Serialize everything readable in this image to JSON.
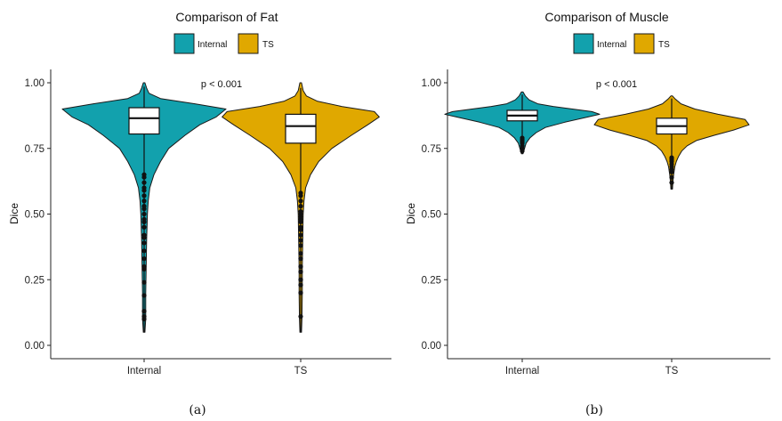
{
  "colors": {
    "internal": "#12a1ad",
    "ts": "#e0a800",
    "outline": "#1a1a1a"
  },
  "chart_data": [
    {
      "type": "violin",
      "title": "Comparison of Fat",
      "xlabel": "",
      "ylabel": "Dice",
      "ylim": [
        0,
        1.05
      ],
      "yticks": [
        "0.00",
        "0.25",
        "0.50",
        "0.75",
        "1.00"
      ],
      "categories": [
        "Internal",
        "TS"
      ],
      "legend": {
        "placement": "top-center",
        "entries": [
          "Internal",
          "TS"
        ]
      },
      "annotation": "p < 0.001",
      "caption": "(a)",
      "series": [
        {
          "name": "Internal",
          "min": 0.05,
          "max": 1.0,
          "box": {
            "q1": 0.805,
            "median": 0.865,
            "q3": 0.905,
            "whisker_low": 0.66,
            "whisker_high": 0.985
          },
          "density": [
            [
              0.05,
              0.01
            ],
            [
              0.1,
              0.02
            ],
            [
              0.2,
              0.02
            ],
            [
              0.3,
              0.025
            ],
            [
              0.4,
              0.03
            ],
            [
              0.5,
              0.04
            ],
            [
              0.55,
              0.05
            ],
            [
              0.6,
              0.07
            ],
            [
              0.65,
              0.12
            ],
            [
              0.7,
              0.2
            ],
            [
              0.75,
              0.3
            ],
            [
              0.8,
              0.5
            ],
            [
              0.84,
              0.68
            ],
            [
              0.87,
              0.88
            ],
            [
              0.9,
              1.0
            ],
            [
              0.92,
              0.62
            ],
            [
              0.94,
              0.2
            ],
            [
              0.96,
              0.06
            ],
            [
              0.98,
              0.03
            ],
            [
              1.0,
              0.01
            ]
          ],
          "outliers": [
            0.1,
            0.11,
            0.13,
            0.19,
            0.24,
            0.29,
            0.3,
            0.33,
            0.36,
            0.39,
            0.41,
            0.42,
            0.45,
            0.47,
            0.48,
            0.5,
            0.52,
            0.53,
            0.55,
            0.57,
            0.59,
            0.6,
            0.62,
            0.64,
            0.65
          ]
        },
        {
          "name": "TS",
          "min": 0.05,
          "max": 1.0,
          "box": {
            "q1": 0.77,
            "median": 0.835,
            "q3": 0.88,
            "whisker_low": 0.59,
            "whisker_high": 0.98
          },
          "density": [
            [
              0.05,
              0.01
            ],
            [
              0.1,
              0.015
            ],
            [
              0.2,
              0.02
            ],
            [
              0.3,
              0.02
            ],
            [
              0.4,
              0.025
            ],
            [
              0.5,
              0.03
            ],
            [
              0.55,
              0.04
            ],
            [
              0.6,
              0.06
            ],
            [
              0.65,
              0.12
            ],
            [
              0.7,
              0.22
            ],
            [
              0.75,
              0.38
            ],
            [
              0.8,
              0.62
            ],
            [
              0.84,
              0.82
            ],
            [
              0.87,
              0.96
            ],
            [
              0.89,
              0.9
            ],
            [
              0.91,
              0.5
            ],
            [
              0.93,
              0.2
            ],
            [
              0.95,
              0.07
            ],
            [
              0.97,
              0.03
            ],
            [
              1.0,
              0.01
            ]
          ],
          "outliers": [
            0.11,
            0.2,
            0.23,
            0.25,
            0.28,
            0.3,
            0.33,
            0.35,
            0.38,
            0.4,
            0.42,
            0.44,
            0.45,
            0.47,
            0.48,
            0.49,
            0.5,
            0.51,
            0.53,
            0.55,
            0.57,
            0.58
          ]
        }
      ]
    },
    {
      "type": "violin",
      "title": "Comparison of Muscle",
      "xlabel": "",
      "ylabel": "Dice",
      "ylim": [
        0,
        1.05
      ],
      "yticks": [
        "0.00",
        "0.25",
        "0.50",
        "0.75",
        "1.00"
      ],
      "categories": [
        "Internal",
        "TS"
      ],
      "legend": {
        "placement": "top-center",
        "entries": [
          "Internal",
          "TS"
        ]
      },
      "annotation": "p < 0.001",
      "caption": "(b)",
      "series": [
        {
          "name": "Internal",
          "min": 0.73,
          "max": 0.965,
          "box": {
            "q1": 0.855,
            "median": 0.875,
            "q3": 0.895,
            "whisker_low": 0.795,
            "whisker_high": 0.955
          },
          "density": [
            [
              0.73,
              0.01
            ],
            [
              0.75,
              0.03
            ],
            [
              0.77,
              0.05
            ],
            [
              0.79,
              0.1
            ],
            [
              0.81,
              0.18
            ],
            [
              0.83,
              0.3
            ],
            [
              0.85,
              0.55
            ],
            [
              0.87,
              0.85
            ],
            [
              0.88,
              1.0
            ],
            [
              0.89,
              0.9
            ],
            [
              0.9,
              0.65
            ],
            [
              0.91,
              0.4
            ],
            [
              0.92,
              0.2
            ],
            [
              0.935,
              0.09
            ],
            [
              0.95,
              0.04
            ],
            [
              0.965,
              0.01
            ]
          ],
          "outliers": [
            0.74,
            0.75,
            0.76,
            0.77,
            0.775,
            0.78,
            0.785,
            0.79
          ]
        },
        {
          "name": "TS",
          "min": 0.595,
          "max": 0.95,
          "box": {
            "q1": 0.805,
            "median": 0.835,
            "q3": 0.865,
            "whisker_low": 0.72,
            "whisker_high": 0.94
          },
          "density": [
            [
              0.595,
              0.01
            ],
            [
              0.62,
              0.015
            ],
            [
              0.65,
              0.025
            ],
            [
              0.68,
              0.04
            ],
            [
              0.7,
              0.06
            ],
            [
              0.72,
              0.09
            ],
            [
              0.74,
              0.13
            ],
            [
              0.76,
              0.2
            ],
            [
              0.78,
              0.32
            ],
            [
              0.8,
              0.55
            ],
            [
              0.82,
              0.8
            ],
            [
              0.84,
              1.0
            ],
            [
              0.86,
              0.95
            ],
            [
              0.88,
              0.6
            ],
            [
              0.9,
              0.3
            ],
            [
              0.92,
              0.12
            ],
            [
              0.94,
              0.04
            ],
            [
              0.95,
              0.01
            ]
          ],
          "outliers": [
            0.62,
            0.64,
            0.66,
            0.67,
            0.68,
            0.69,
            0.7,
            0.705,
            0.71,
            0.715
          ]
        }
      ]
    }
  ]
}
